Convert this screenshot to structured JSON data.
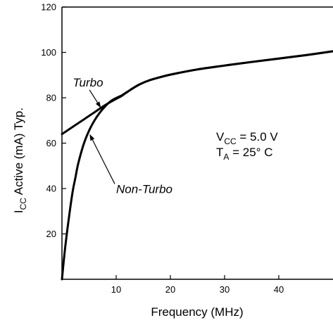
{
  "chart_data": {
    "type": "line",
    "title": "",
    "xlabel": "Frequency (MHz)",
    "ylabel_main": "I",
    "ylabel_sub": "CC",
    "ylabel_rest": " Active (mA) Typ.",
    "xlim": [
      0,
      50
    ],
    "ylim": [
      0,
      120
    ],
    "x_ticks": [
      10,
      20,
      30,
      40
    ],
    "y_ticks": [
      20,
      40,
      60,
      80,
      100,
      120
    ],
    "grid": false,
    "series": [
      {
        "name": "Turbo",
        "x": [
          0,
          2,
          4,
          6,
          8,
          10,
          11,
          12,
          14,
          16,
          18,
          20,
          25,
          30,
          35,
          40,
          45,
          50
        ],
        "y": [
          64,
          67.2,
          70.4,
          73.6,
          76.8,
          79.5,
          80.8,
          82.5,
          85.5,
          87.6,
          89,
          90.2,
          92.5,
          94.2,
          95.8,
          97.3,
          98.8,
          100.5
        ]
      },
      {
        "name": "Non-Turbo",
        "x": [
          0,
          0.5,
          1,
          1.5,
          2,
          2.5,
          3,
          4,
          5,
          6,
          7,
          8,
          9,
          10,
          11,
          12,
          14,
          16,
          18,
          20,
          25,
          30,
          35,
          40,
          45,
          50
        ],
        "y": [
          0,
          12,
          22,
          31,
          39,
          45,
          51,
          59.5,
          65.5,
          70,
          73.5,
          76.3,
          78.5,
          79.9,
          81,
          82.5,
          85.5,
          87.6,
          89,
          90.2,
          92.5,
          94.2,
          95.8,
          97.3,
          98.8,
          100.5
        ]
      }
    ],
    "annotations": [
      {
        "text": "Turbo",
        "label_x": 2,
        "label_y": 85,
        "arrow_to_x": 7.2,
        "arrow_to_y": 75.5
      },
      {
        "text": "Non-Turbo",
        "label_x": 10,
        "label_y": 38,
        "arrow_to_x": 5.1,
        "arrow_to_y": 64
      }
    ],
    "conditions": {
      "vcc_main": "V",
      "vcc_sub": "CC",
      "vcc_rest": " = 5.0 V",
      "ta_main": "T",
      "ta_sub": "A",
      "ta_rest": " = 25° C"
    }
  }
}
